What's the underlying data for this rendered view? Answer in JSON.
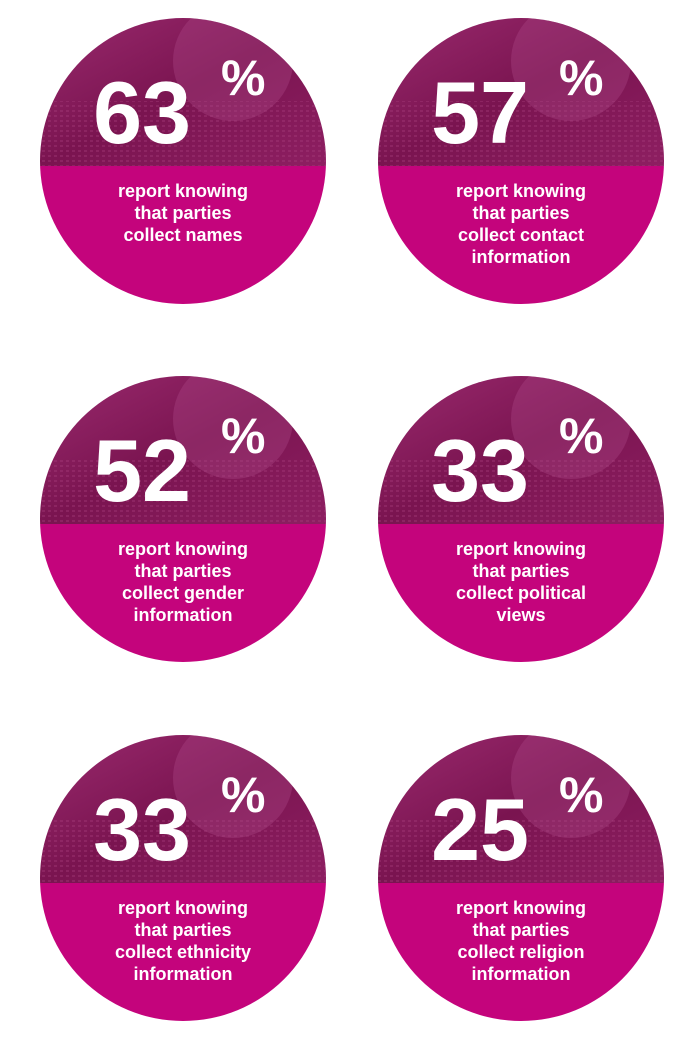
{
  "stats": [
    {
      "value": "63",
      "unit": "%",
      "description": [
        "report knowing",
        "that parties",
        "collect names"
      ]
    },
    {
      "value": "57",
      "unit": "%",
      "description": [
        "report knowing",
        "that parties",
        "collect contact",
        "information"
      ]
    },
    {
      "value": "52",
      "unit": "%",
      "description": [
        "report knowing",
        "that parties",
        "collect gender",
        "information"
      ]
    },
    {
      "value": "33",
      "unit": "%",
      "description": [
        "report knowing",
        "that parties",
        "collect political",
        "views"
      ]
    },
    {
      "value": "33",
      "unit": "%",
      "description": [
        "report knowing",
        "that parties",
        "collect ethnicity",
        "information"
      ]
    },
    {
      "value": "25",
      "unit": "%",
      "description": [
        "report knowing",
        "that parties",
        "collect religion",
        "information"
      ]
    }
  ]
}
